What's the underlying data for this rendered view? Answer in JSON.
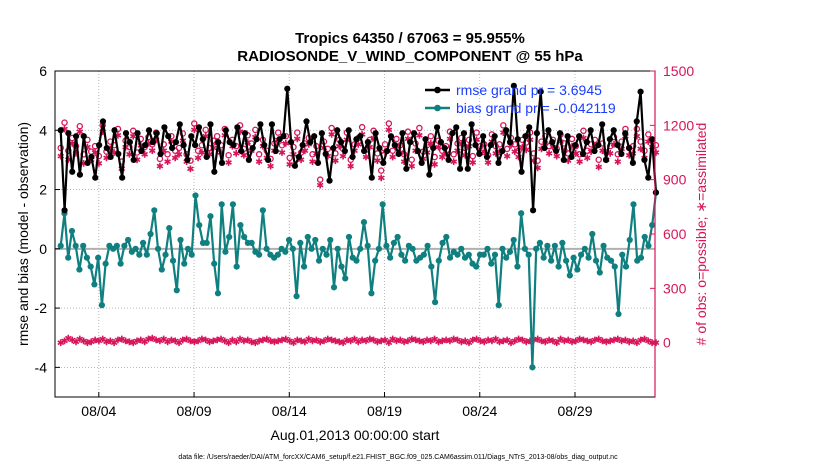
{
  "colors": {
    "rmse": "#000000",
    "bias": "#0f7f7f",
    "obs": "#d6155a",
    "legend_text": "#1a3cff",
    "zero_line": "#b0b0b0"
  },
  "chart_data": {
    "type": "line",
    "title": "Tropics 64350 / 67063 = 95.955%",
    "subtitle": "RADIOSONDE_V_WIND_COMPONENT @ 55 hPa",
    "xlabel": "Aug.01,2013 00:00:00 start",
    "ylabel_left": "rmse and bias (model - observation)",
    "ylabel_right": "# of obs: o=possible; ∗=assimilated",
    "ylim_left": [
      -5,
      6
    ],
    "ylim_right": [
      -300,
      1500
    ],
    "xlim_days": [
      0.7,
      32.2
    ],
    "left_ticks": [
      "-4",
      "-2",
      "0",
      "2",
      "4",
      "6"
    ],
    "right_ticks": [
      "0",
      "300",
      "600",
      "900",
      "1200",
      "1500"
    ],
    "x_ticks": [
      {
        "label": "08/04",
        "day": 3
      },
      {
        "label": "08/09",
        "day": 8
      },
      {
        "label": "08/14",
        "day": 13
      },
      {
        "label": "08/19",
        "day": 18
      },
      {
        "label": "08/24",
        "day": 23
      },
      {
        "label": "08/29",
        "day": 28
      }
    ],
    "legend": [
      {
        "key": "rmse",
        "label": "rmse grand pr = 3.6945"
      },
      {
        "key": "bias",
        "label": "bias grand pr = -0.042119"
      }
    ],
    "series": [
      {
        "name": "rmse",
        "axis": "left",
        "marker": "circle-filled",
        "values": [
          4.0,
          1.3,
          3.9,
          2.6,
          3.8,
          2.5,
          3.8,
          2.9,
          3.1,
          2.4,
          3.5,
          4.3,
          3.4,
          3.1,
          4.0,
          3.2,
          2.4,
          3.9,
          3.6,
          3.0,
          3.9,
          3.3,
          3.5,
          4.0,
          3.6,
          3.9,
          3.2,
          4.1,
          3.8,
          3.4,
          3.6,
          4.2,
          3.5,
          3.0,
          3.8,
          3.5,
          4.1,
          3.7,
          3.1,
          4.2,
          2.6,
          3.6,
          2.9,
          4.0,
          3.6,
          3.5,
          4.1,
          3.3,
          3.9,
          3.0,
          3.4,
          3.7,
          4.2,
          3.5,
          3.0,
          4.2,
          3.3,
          3.7,
          3.8,
          5.4,
          3.6,
          2.8,
          3.1,
          3.5,
          4.3,
          3.6,
          3.8,
          2.9,
          3.9,
          3.2,
          2.3,
          3.4,
          4.0,
          3.6,
          3.3,
          4.0,
          3.1,
          3.7,
          3.8,
          3.3,
          3.6,
          2.4,
          3.9,
          3.4,
          2.9,
          3.3,
          3.8,
          3.5,
          3.2,
          3.9,
          2.7,
          3.6,
          3.9,
          3.3,
          2.9,
          3.7,
          2.5,
          3.4,
          4.1,
          3.6,
          3.4,
          3.0,
          3.9,
          4.1,
          2.7,
          3.9,
          2.7,
          4.2,
          3.5,
          3.2,
          3.8,
          3.1,
          3.5,
          3.8,
          2.9,
          3.3,
          4.0,
          3.6,
          5.5,
          3.7,
          2.6,
          3.8,
          4.1,
          1.3,
          3.9,
          5.3,
          3.4,
          4.0,
          3.6,
          3.3,
          3.9,
          3.0,
          3.8,
          3.1,
          3.5,
          3.8,
          3.2,
          3.6,
          4.0,
          3.3,
          3.5,
          4.2,
          3.0,
          3.7,
          4.0,
          3.5,
          3.2,
          3.9,
          3.4,
          2.9,
          4.3,
          5.3,
          3.0,
          2.4,
          3.7,
          1.9
        ]
      },
      {
        "name": "bias",
        "axis": "left",
        "marker": "circle-filled",
        "values": [
          0.1,
          1.2,
          -0.3,
          0.6,
          0.1,
          -0.7,
          0.1,
          -0.3,
          -0.6,
          -1.2,
          -0.3,
          -1.9,
          -0.5,
          0.1,
          0.0,
          0.1,
          -0.5,
          0.1,
          0.3,
          -0.1,
          0.0,
          -0.2,
          0.2,
          -0.2,
          0.5,
          1.3,
          0.0,
          -0.7,
          -0.2,
          0.7,
          -0.4,
          -1.4,
          0.3,
          -0.5,
          0.0,
          -0.2,
          1.8,
          0.8,
          0.2,
          0.2,
          1.1,
          -0.5,
          -1.5,
          1.5,
          -0.1,
          0.4,
          1.5,
          -0.6,
          0.8,
          0.4,
          0.2,
          0.2,
          -0.1,
          -0.2,
          1.3,
          0.0,
          -0.2,
          -0.3,
          -0.2,
          0.0,
          -0.1,
          0.3,
          0.0,
          -1.6,
          0.2,
          -0.6,
          0.4,
          0.0,
          0.3,
          -0.4,
          0.0,
          -0.2,
          0.3,
          -1.3,
          0.0,
          -0.6,
          -1.0,
          0.4,
          -0.3,
          -0.4,
          0.0,
          0.9,
          0.1,
          -1.5,
          -0.4,
          0.0,
          1.5,
          0.1,
          -0.3,
          0.2,
          0.4,
          -0.2,
          -0.4,
          0.1,
          0.0,
          -0.4,
          -0.3,
          -0.2,
          0.1,
          -0.6,
          -1.8,
          -0.4,
          0.2,
          0.4,
          -0.3,
          -0.1,
          -0.2,
          0.0,
          -0.3,
          -0.2,
          -0.5,
          -0.6,
          -0.2,
          -0.2,
          0.0,
          -0.5,
          -0.2,
          -1.9,
          0.0,
          -0.3,
          -0.1,
          0.3,
          -0.6,
          1.2,
          0.0,
          -0.2,
          -4.0,
          0.0,
          0.2,
          -0.3,
          0.1,
          -0.4,
          0.1,
          -0.6,
          0.2,
          -0.4,
          -0.9,
          -0.3,
          -0.7,
          -0.2,
          0.0,
          -0.3,
          0.5,
          -0.4,
          -0.8,
          0.1,
          -0.3,
          -0.4,
          -0.6,
          -2.2,
          -0.2,
          -0.6,
          0.3,
          1.5,
          -0.4,
          -0.3,
          0.4,
          0.1,
          0.8,
          1.9
        ]
      },
      {
        "name": "obs_possible",
        "axis": "right",
        "marker": "circle-open",
        "values": [
          1075,
          1215,
          1060,
          1130,
          1085,
          1195,
          1040,
          1120,
          1055,
          1085,
          1030,
          1200,
          1055,
          1110,
          1090,
          1180,
          1000,
          1115,
          1080,
          1170,
          1050,
          1125,
          1080,
          1135,
          1095,
          1160,
          1015,
          1095,
          1040,
          1140,
          1060,
          1075,
          1155,
          1040,
          1005,
          1210,
          1060,
          1090,
          1175,
          1075,
          1115,
          1140,
          1090,
          1180,
          1035,
          1120,
          1085,
          1200,
          1070,
          1145,
          1100,
          1175,
          1040,
          1120,
          1060,
          1015,
          1100,
          1160,
          1090,
          1140,
          1020,
          1080,
          1160,
          1050,
          1100,
          1130,
          1040,
          1085,
          900,
          1110,
          1070,
          1185,
          1045,
          1120,
          1070,
          1160,
          1010,
          1095,
          1130,
          1190,
          1065,
          1120,
          1170,
          1045,
          950,
          1095,
          1210,
          1060,
          1125,
          1090,
          1040,
          1165,
          1010,
          1100,
          1185,
          1055,
          1090,
          1140,
          1025,
          1115,
          1060,
          1085,
          1165,
          1040,
          1100,
          1130,
          1075,
          1120,
          1030,
          1160,
          1085,
          1095,
          1035,
          1150,
          1085,
          1095,
          1200,
          1070,
          1130,
          1095,
          1060,
          1120,
          1105,
          1160,
          1045,
          1005,
          1110,
          1140,
          1085,
          1120,
          1070,
          1150,
          1100,
          1045,
          1125,
          1085,
          1040,
          1170,
          1060,
          1095,
          1120,
          1010,
          1100,
          1050,
          1085,
          1135,
          1040,
          1110,
          1180,
          1075,
          1085,
          1180,
          1110,
          1060,
          1150,
          1120,
          1090
        ]
      },
      {
        "name": "obs_assimilated",
        "axis": "right",
        "marker": "asterisk",
        "values": [
          1030,
          1180,
          1010,
          1100,
          1045,
          1165,
          990,
          1080,
          1010,
          1050,
          990,
          1165,
          1020,
          1070,
          1050,
          1145,
          960,
          1080,
          1040,
          1140,
          1010,
          1090,
          1040,
          1100,
          1060,
          1120,
          975,
          1060,
          1000,
          1110,
          1020,
          1040,
          1115,
          1000,
          960,
          1175,
          1020,
          1050,
          1140,
          1040,
          1075,
          1100,
          1050,
          1145,
          995,
          1085,
          1045,
          1165,
          1035,
          1105,
          1060,
          1135,
          1000,
          1085,
          1020,
          975,
          1060,
          1120,
          1050,
          1100,
          985,
          1040,
          1125,
          1010,
          1060,
          1095,
          1000,
          1045,
          870,
          1075,
          1030,
          1150,
          1005,
          1085,
          1030,
          1120,
          975,
          1060,
          1095,
          1150,
          1025,
          1080,
          1130,
          1005,
          910,
          1055,
          1175,
          1025,
          1085,
          1050,
          1000,
          1125,
          975,
          1060,
          1145,
          1015,
          1050,
          1100,
          985,
          1080,
          1025,
          1045,
          1125,
          1000,
          1060,
          1095,
          1035,
          1085,
          995,
          1120,
          1045,
          1055,
          995,
          1110,
          1045,
          1055,
          1160,
          1030,
          1090,
          1055,
          1025,
          1080,
          1065,
          1120,
          1005,
          965,
          1070,
          1100,
          1045,
          1080,
          1030,
          1110,
          1060,
          1005,
          1085,
          1045,
          1000,
          1130,
          1020,
          1055,
          1085,
          970,
          1060,
          1010,
          1045,
          1095,
          1000,
          1070,
          1140,
          1035,
          1045,
          1140,
          1070,
          1020,
          1110,
          1080,
          1050
        ]
      },
      {
        "name": "obs_low",
        "axis": "right",
        "marker": "asterisk",
        "values": [
          0,
          10,
          25,
          15,
          5,
          20,
          10,
          0,
          5,
          15,
          10,
          20,
          5,
          10,
          0,
          15,
          20,
          10,
          5,
          0,
          10,
          15,
          5,
          20,
          25,
          15,
          10,
          20,
          5,
          15,
          10,
          0,
          15,
          20,
          10,
          5,
          10,
          20,
          15,
          5,
          10,
          15,
          20,
          10,
          0,
          15,
          5,
          20,
          10,
          15,
          5,
          0,
          10,
          15,
          20,
          10,
          5,
          10,
          15,
          20,
          10,
          0,
          15,
          10,
          5,
          20,
          10,
          15,
          5,
          10,
          20,
          15,
          10,
          5,
          0,
          15,
          10,
          20,
          5,
          15,
          10,
          20,
          15,
          5,
          10,
          15,
          0,
          20,
          10,
          15,
          5,
          10,
          20,
          15,
          10,
          5,
          15,
          10,
          20,
          5,
          10,
          15,
          10,
          20,
          15,
          5,
          10,
          0,
          15,
          20,
          10,
          5,
          15,
          10,
          20,
          5,
          10,
          15,
          0,
          10,
          20,
          15,
          5,
          10,
          15,
          20,
          10,
          5,
          15,
          10,
          0,
          20,
          10,
          15,
          5,
          10,
          20,
          15,
          10,
          5,
          15,
          20,
          10,
          5,
          10,
          15,
          20,
          10,
          15,
          5,
          10,
          0,
          15,
          20,
          10,
          0,
          0
        ]
      }
    ]
  },
  "footer": "data file: /Users/raeder/DAI/ATM_forcXX/CAM6_setup/f.e21.FHIST_BGC.f09_025.CAM6assim.011/Diags_NTrS_2013-08/obs_diag_output.nc"
}
